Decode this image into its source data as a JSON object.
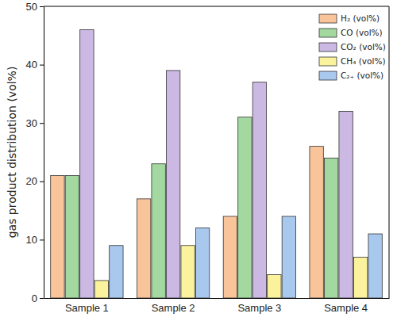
{
  "chart_data": {
    "type": "bar",
    "y_label": "gas product distribution (vol%)",
    "categories": [
      "Sample 1",
      "Sample 2",
      "Sample 3",
      "Sample 4"
    ],
    "series": [
      {
        "name": "H₂ (vol%)",
        "color": "#f9c49a",
        "values": [
          21,
          17,
          14,
          26
        ]
      },
      {
        "name": "CO (vol%)",
        "color": "#a3d9a0",
        "values": [
          21,
          23,
          31,
          24
        ]
      },
      {
        "name": "CO₂ (vol%)",
        "color": "#cbb8e3",
        "values": [
          46,
          39,
          37,
          32
        ]
      },
      {
        "name": "CH₄ (vol%)",
        "color": "#fbf29e",
        "values": [
          3,
          9,
          4,
          7
        ]
      },
      {
        "name": "C₂₊ (vol%)",
        "color": "#a9c8ee",
        "values": [
          9,
          12,
          14,
          11
        ]
      }
    ],
    "ylim": [
      0,
      50
    ],
    "yticks": [
      0,
      10,
      20,
      30,
      40,
      50
    ],
    "legend": "upper right",
    "grid": false
  }
}
